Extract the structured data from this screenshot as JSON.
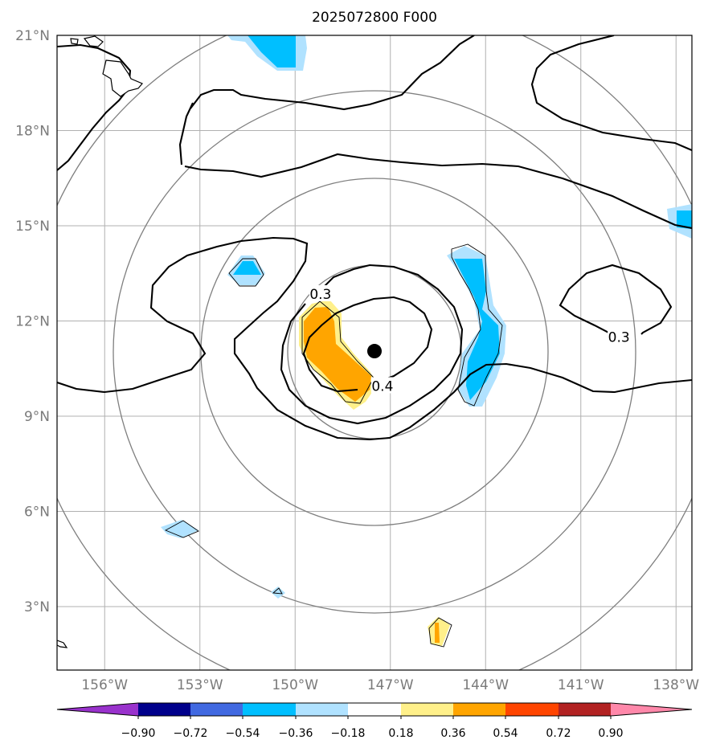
{
  "title": "2025072800 F000",
  "axes": {
    "x_ticks": [
      "156°W",
      "153°W",
      "150°W",
      "147°W",
      "144°W",
      "141°W",
      "138°W"
    ],
    "y_ticks": [
      "21°N",
      "18°N",
      "15°N",
      "12°N",
      "9°N",
      "6°N",
      "3°N"
    ],
    "lon_range": [
      -157.5,
      -137.5
    ],
    "lat_range": [
      1,
      21
    ],
    "grid": true
  },
  "storm_center": {
    "lon": -147.5,
    "lat": 11.05
  },
  "contour_labels": [
    {
      "text": "0.3",
      "lon": -149.2,
      "lat": 12.85
    },
    {
      "text": "0.4",
      "lon": -147.25,
      "lat": 9.95
    },
    {
      "text": "0.3",
      "lon": -139.8,
      "lat": 11.5
    }
  ],
  "colorbar": {
    "ticks": [
      "−0.90",
      "−0.72",
      "−0.54",
      "−0.36",
      "−0.18",
      "0.18",
      "0.36",
      "0.54",
      "0.72",
      "0.90"
    ],
    "colors": [
      "#9932cc",
      "#00008b",
      "#4169e1",
      "#00bfff",
      "#b0e2ff",
      "#ffffff",
      "#fff08a",
      "#ffa500",
      "#ff4500",
      "#b22222",
      "#ff88aa"
    ]
  }
}
